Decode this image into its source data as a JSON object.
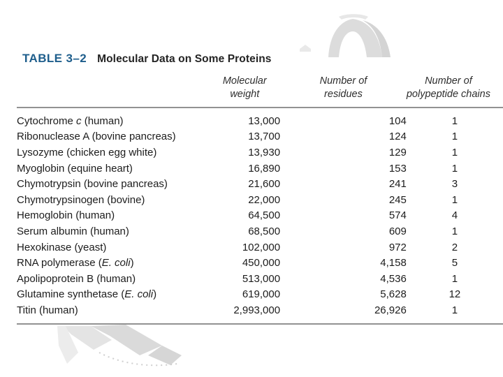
{
  "colors": {
    "accent_blue": "#1e5e8c",
    "rule_gray": "#929292",
    "body_text": "#1c1c1c",
    "background": "#ffffff",
    "ghost_gray": "#dcdcdc"
  },
  "table": {
    "label": "TABLE 3–2",
    "title": "Molecular Data on Some Proteins",
    "columns": [
      {
        "key": "name",
        "header_lines": []
      },
      {
        "key": "mw",
        "header_lines": [
          "Molecular",
          "weight"
        ]
      },
      {
        "key": "residues",
        "header_lines": [
          "Number of",
          "residues"
        ]
      },
      {
        "key": "chains",
        "header_lines": [
          "Number of",
          "polypeptide chains"
        ]
      }
    ],
    "rows": [
      {
        "name": [
          {
            "t": "Cytochrome "
          },
          {
            "t": "c",
            "i": true
          },
          {
            "t": " (human)"
          }
        ],
        "mw": "13,000",
        "residues": "104",
        "chains": "1"
      },
      {
        "name": [
          {
            "t": "Ribonuclease A (bovine pancreas)"
          }
        ],
        "mw": "13,700",
        "residues": "124",
        "chains": "1"
      },
      {
        "name": [
          {
            "t": "Lysozyme (chicken egg white)"
          }
        ],
        "mw": "13,930",
        "residues": "129",
        "chains": "1"
      },
      {
        "name": [
          {
            "t": "Myoglobin (equine heart)"
          }
        ],
        "mw": "16,890",
        "residues": "153",
        "chains": "1"
      },
      {
        "name": [
          {
            "t": "Chymotrypsin (bovine pancreas)"
          }
        ],
        "mw": "21,600",
        "residues": "241",
        "chains": "3"
      },
      {
        "name": [
          {
            "t": "Chymotrypsinogen (bovine)"
          }
        ],
        "mw": "22,000",
        "residues": "245",
        "chains": "1"
      },
      {
        "name": [
          {
            "t": "Hemoglobin (human)"
          }
        ],
        "mw": "64,500",
        "residues": "574",
        "chains": "4"
      },
      {
        "name": [
          {
            "t": "Serum albumin (human)"
          }
        ],
        "mw": "68,500",
        "residues": "609",
        "chains": "1"
      },
      {
        "name": [
          {
            "t": "Hexokinase (yeast)"
          }
        ],
        "mw": "102,000",
        "residues": "972",
        "chains": "2"
      },
      {
        "name": [
          {
            "t": "RNA polymerase ("
          },
          {
            "t": "E. coli",
            "i": true
          },
          {
            "t": ")"
          }
        ],
        "mw": "450,000",
        "residues": "4,158",
        "chains": "5"
      },
      {
        "name": [
          {
            "t": "Apolipoprotein B (human)"
          }
        ],
        "mw": "513,000",
        "residues": "4,536",
        "chains": "1"
      },
      {
        "name": [
          {
            "t": "Glutamine synthetase ("
          },
          {
            "t": "E. coli",
            "i": true
          },
          {
            "t": ")"
          }
        ],
        "mw": "619,000",
        "residues": "5,628",
        "chains": "12"
      },
      {
        "name": [
          {
            "t": "Titin (human)"
          }
        ],
        "mw": "2,993,000",
        "residues": "26,926",
        "chains": "1"
      }
    ]
  }
}
